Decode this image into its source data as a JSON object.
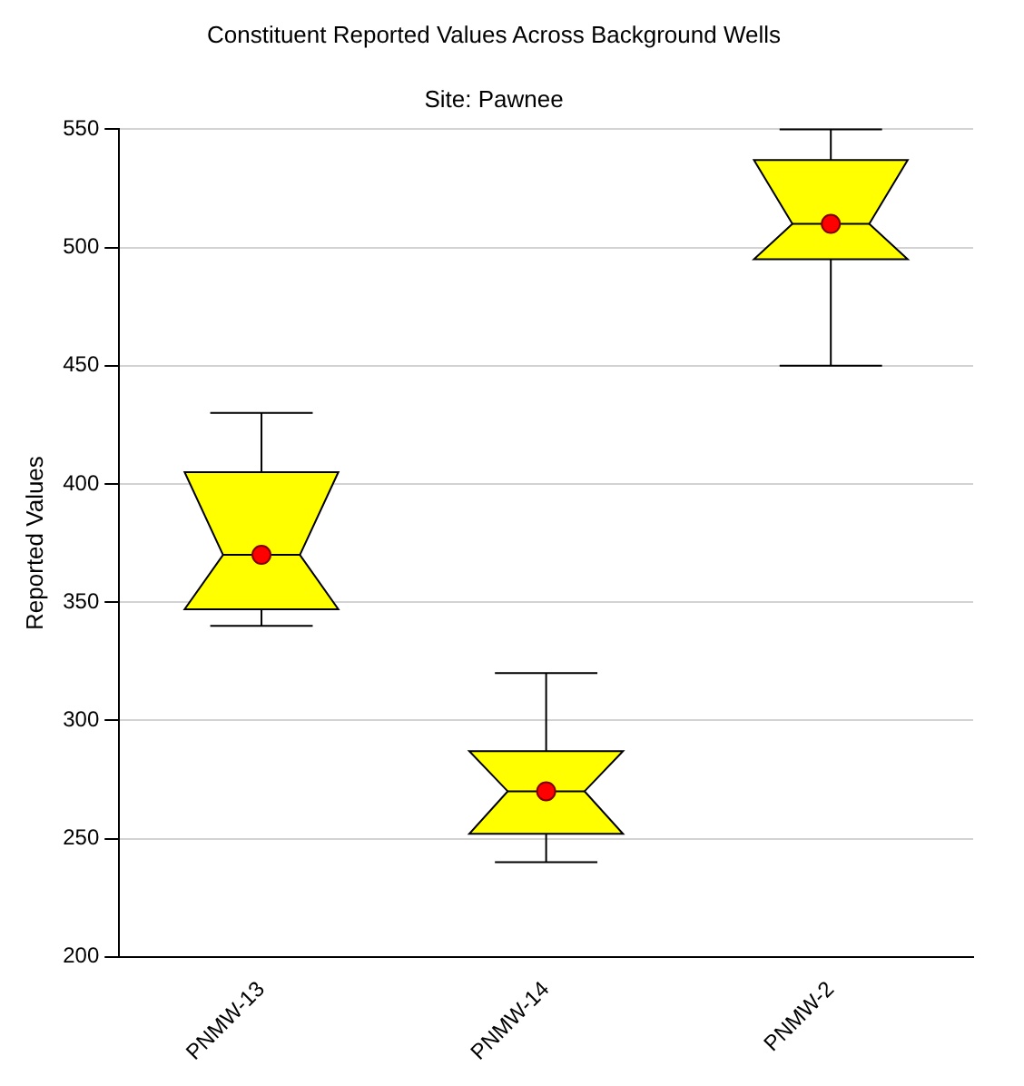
{
  "chart_data": {
    "type": "box",
    "title": "Constituent Reported Values Across Background Wells",
    "subtitle": "Site: Pawnee",
    "ylabel": "Reported Values",
    "categories": [
      "PNMW-13",
      "PNMW-14",
      "PNMW-2"
    ],
    "color": "#ffff00",
    "boxes": [
      {
        "low": 340,
        "q1": 347,
        "median": 370,
        "q3": 405,
        "high": 430,
        "mean": 370
      },
      {
        "low": 240,
        "q1": 252,
        "median": 270,
        "q3": 287,
        "high": 320,
        "mean": 270
      },
      {
        "low": 450,
        "q1": 495,
        "median": 510,
        "q3": 537,
        "high": 550,
        "mean": 510
      }
    ],
    "ylim": [
      200,
      550
    ],
    "yticks": [
      200,
      250,
      300,
      350,
      400,
      450,
      500,
      550
    ],
    "grid": "y",
    "legend": false
  }
}
